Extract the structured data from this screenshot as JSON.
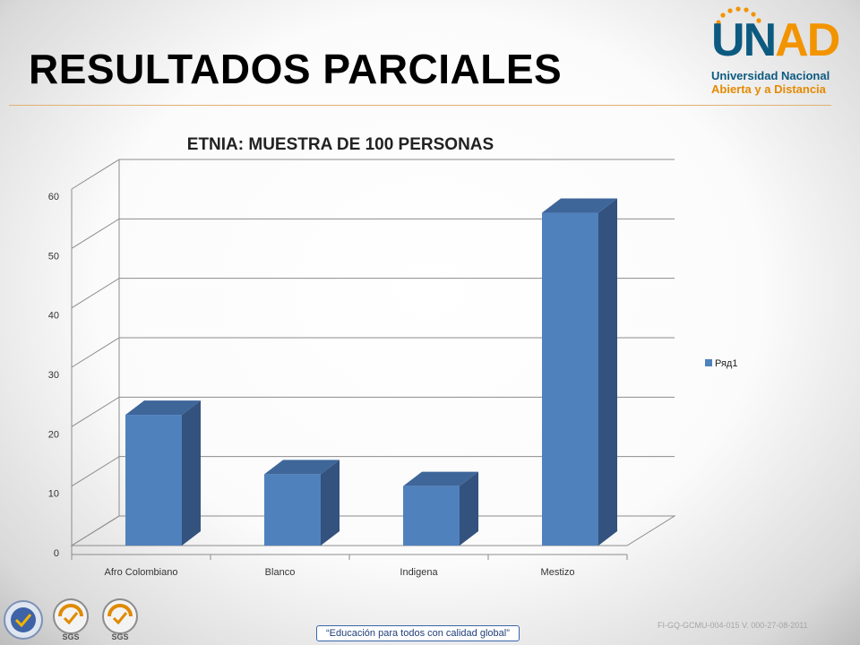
{
  "slide": {
    "title": "RESULTADOS PARCIALES",
    "accent_color": "#e2b073"
  },
  "logo": {
    "letters": [
      "U",
      "N",
      "A",
      "D"
    ],
    "line1": "Universidad Nacional",
    "line2": "Abierta y a Distancia",
    "colors": {
      "blue": "#0c5a80",
      "orange": "#f29400"
    }
  },
  "chart_data": {
    "type": "bar",
    "style": "3d-column",
    "title": "ETNIA: MUESTRA DE 100 PERSONAS",
    "categories": [
      "Afro Colombiano",
      "Blanco",
      "Indigena",
      "Mestizo"
    ],
    "series": [
      {
        "name": "Ряд1",
        "values": [
          22,
          12,
          10,
          56
        ],
        "color": "#4f81bd"
      }
    ],
    "ylim": [
      0,
      60
    ],
    "yticks": [
      0,
      10,
      20,
      30,
      40,
      50,
      60
    ],
    "xlabel": "",
    "ylabel": "",
    "grid": true,
    "legend": "right"
  },
  "footer": {
    "code": "FI-GQ-GCMU-004-015 V. 000-27-08-2011",
    "slogan": "“Educación para todos con calidad global”",
    "badges": [
      "seal-icon",
      "sgs-certification-icon",
      "sgs-certification-icon"
    ],
    "badge_text": "SGS"
  }
}
